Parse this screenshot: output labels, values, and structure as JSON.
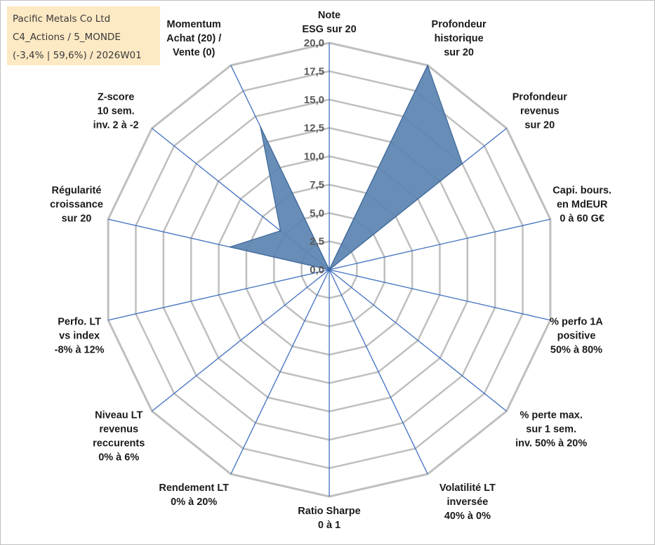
{
  "info": {
    "company": "Pacific Metals Co Ltd",
    "portfolio": "C4_Actions / 5_MONDE",
    "summary": "(-3,4% | 59,6%) / 2026W01"
  },
  "colors": {
    "series_fill": "#5b84b1",
    "series_stroke": "#3e6797",
    "spokes": "#3f6fbf",
    "grid": "#bfbfbf",
    "info_box": "#fde9c4"
  },
  "chart_data": {
    "type": "radar",
    "rmin": 0,
    "rmax": 20,
    "tick_step": 2.5,
    "ticks": [
      "0,0",
      "2,5",
      "5,0",
      "7,5",
      "10,0",
      "12,5",
      "15,0",
      "17,5",
      "20,0"
    ],
    "grid": true,
    "legend": "none",
    "axes": [
      "Note\nESG sur 20",
      "Profondeur\nhistorique\nsur 20",
      "Profondeur\nrevenus\nsur 20",
      "Capi. bours.\nen MdEUR\n0 à 60 G€",
      "% perfo 1A\npositive\n50% à 80%",
      "% perte max.\nsur 1 sem.\ninv. 50% à 20%",
      "Volatilité LT\ninversée\n40% à 0%",
      "Ratio Sharpe\n0 à 1",
      "Rendement LT\n0% à 20%",
      "Niveau LT\nrevenus\nreccurents\n0% à 6%",
      "Perfo. LT\nvs index\n-8% à 12%",
      "Régularité\ncroissance\nsur 20",
      "Z-score\n10 sem.\ninv. 2 à -2",
      "Momentum\nAchat (20) /\nVente (0)"
    ],
    "series": [
      {
        "values": [
          0,
          20,
          15,
          0,
          0,
          0,
          0,
          0,
          0,
          0,
          0,
          9,
          5.5,
          14
        ]
      }
    ]
  }
}
